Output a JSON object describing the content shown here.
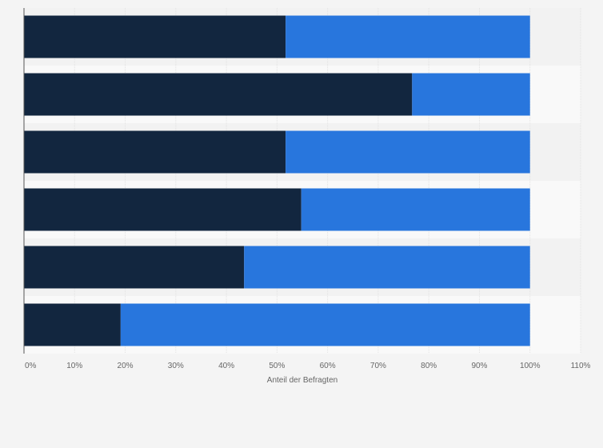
{
  "chart_data": {
    "type": "bar",
    "orientation": "horizontal",
    "stacked": true,
    "categories": [
      "",
      "",
      "",
      "",
      "",
      ""
    ],
    "series": [
      {
        "values": [
          51.7,
          76.7,
          51.7,
          54.8,
          43.5,
          19.1
        ]
      },
      {
        "values": [
          48.3,
          23.3,
          48.3,
          45.2,
          56.5,
          80.9
        ]
      }
    ],
    "series_colors": [
      "#12263f",
      "#2876dd"
    ],
    "xlabel": "Anteil der Befragten",
    "ylabel": "",
    "xlim": [
      0,
      110
    ],
    "xticks": [
      0,
      10,
      20,
      30,
      40,
      50,
      60,
      70,
      80,
      90,
      100,
      110
    ],
    "xtick_labels": [
      "0%",
      "10%",
      "20%",
      "30%",
      "40%",
      "50%",
      "60%",
      "70%",
      "80%",
      "90%",
      "100%",
      "110%"
    ],
    "grid": true,
    "legend": "none"
  }
}
